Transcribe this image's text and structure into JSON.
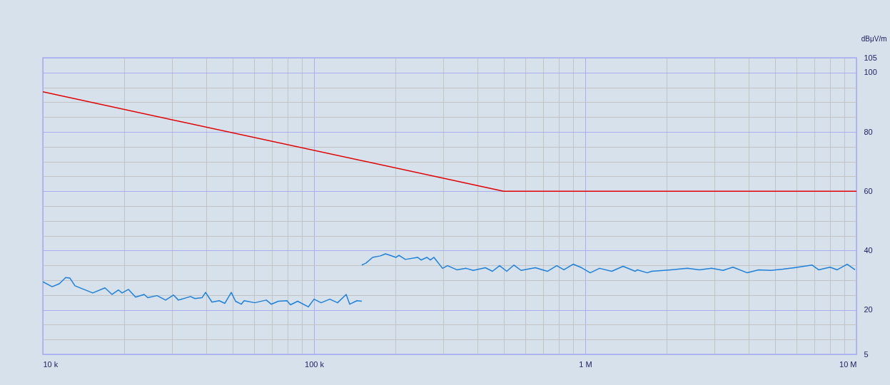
{
  "chart_data": {
    "type": "line",
    "ylabel": "dBμV/m",
    "log": "x",
    "grid": true,
    "legend": false,
    "xlim": [
      10000,
      10000000
    ],
    "xticks": [
      {
        "value": 10000,
        "label": "10 k"
      },
      {
        "value": 20000,
        "label": null
      },
      {
        "value": 30000,
        "label": null
      },
      {
        "value": 40000,
        "label": null
      },
      {
        "value": 50000,
        "label": null
      },
      {
        "value": 60000,
        "label": null
      },
      {
        "value": 70000,
        "label": null
      },
      {
        "value": 80000,
        "label": null
      },
      {
        "value": 90000,
        "label": null
      },
      {
        "value": 100000,
        "label": "100 k"
      },
      {
        "value": 200000,
        "label": null
      },
      {
        "value": 300000,
        "label": null
      },
      {
        "value": 400000,
        "label": null
      },
      {
        "value": 500000,
        "label": null
      },
      {
        "value": 600000,
        "label": null
      },
      {
        "value": 700000,
        "label": null
      },
      {
        "value": 800000,
        "label": null
      },
      {
        "value": 900000,
        "label": null
      },
      {
        "value": 1000000,
        "label": "1 M"
      },
      {
        "value": 2000000,
        "label": null
      },
      {
        "value": 3000000,
        "label": null
      },
      {
        "value": 4000000,
        "label": null
      },
      {
        "value": 5000000,
        "label": null
      },
      {
        "value": 6000000,
        "label": null
      },
      {
        "value": 7000000,
        "label": null
      },
      {
        "value": 8000000,
        "label": null
      },
      {
        "value": 9000000,
        "label": null
      },
      {
        "value": 10000000,
        "label": "10 M"
      }
    ],
    "ylim": [
      5,
      105
    ],
    "yticks": [
      5,
      {
        "value": 10,
        "label": null
      },
      {
        "value": 15,
        "label": null
      },
      20,
      {
        "value": 25,
        "label": null
      },
      {
        "value": 30,
        "label": null
      },
      {
        "value": 35,
        "label": null
      },
      40,
      {
        "value": 45,
        "label": null
      },
      {
        "value": 50,
        "label": null
      },
      {
        "value": 55,
        "label": null
      },
      60,
      {
        "value": 65,
        "label": null
      },
      {
        "value": 70,
        "label": null
      },
      {
        "value": 75,
        "label": null
      },
      80,
      {
        "value": 85,
        "label": null
      },
      {
        "value": 90,
        "label": null
      },
      {
        "value": 95,
        "label": null
      },
      100,
      105
    ],
    "series": [
      {
        "color": "#e00000",
        "x": [
          10000,
          500000,
          10000000
        ],
        "values": [
          93.5,
          60,
          60
        ]
      },
      {
        "color": "#1e80d8",
        "x": [
          10000,
          10820,
          11500,
          12140,
          12590,
          13140,
          15280,
          16940,
          18000,
          19010,
          19600,
          20700,
          21980,
          23640,
          24370,
          26370,
          28360,
          30310,
          31620,
          35050,
          36360,
          38630,
          39810,
          42050,
          44670,
          46900,
          49530,
          51350,
          53900,
          55230,
          60470,
          66650,
          69520,
          73850,
          79430,
          81880,
          87000,
          95260,
          100000,
          106200,
          114300,
          122100,
          131380,
          135400,
          143900,
          150000
        ],
        "values": [
          29.5,
          27.8,
          28.8,
          30.9,
          30.7,
          28.1,
          25.7,
          27.4,
          25.2,
          26.7,
          25.7,
          26.9,
          24.3,
          25.2,
          24.1,
          24.8,
          23.3,
          25.0,
          23.3,
          24.5,
          23.8,
          24.1,
          25.9,
          22.6,
          23.1,
          22.2,
          25.9,
          22.9,
          21.9,
          23.1,
          22.4,
          23.3,
          21.9,
          22.9,
          23.1,
          21.7,
          22.9,
          21.0,
          23.6,
          22.4,
          23.6,
          22.4,
          25.2,
          21.9,
          23.1,
          22.9
        ]
      },
      {
        "color": "#1e80d8",
        "x": [
          150000,
          155600,
          164400,
          175700,
          183400,
          200700,
          205700,
          217200,
          240800,
          248100,
          260500,
          268500,
          276800,
          297700,
          310600,
          336000,
          363600,
          386300,
          428200,
          454900,
          483300,
          513500,
          545800,
          579800,
          654500,
          725300,
          784900,
          834200,
          902100,
          970000,
          1043000,
          1129000,
          1252000,
          1379000,
          1528000,
          1556000,
          1694000,
          1757000,
          2070000,
          2379000,
          2637000,
          2923000,
          3221000,
          3505000,
          3957000,
          4360000,
          4833000,
          5356000,
          5903000,
          6867000,
          7253000,
          7991000,
          8491000,
          9243000,
          9879000
        ],
        "values": [
          35.1,
          35.8,
          37.7,
          38.2,
          38.9,
          37.7,
          38.4,
          37.0,
          37.7,
          36.8,
          37.7,
          36.8,
          37.7,
          34.0,
          34.9,
          33.5,
          34.0,
          33.3,
          34.2,
          33.0,
          34.9,
          33.0,
          35.1,
          33.3,
          34.2,
          33.0,
          34.9,
          33.5,
          35.4,
          34.2,
          32.5,
          34.0,
          33.0,
          34.7,
          33.0,
          33.5,
          32.5,
          33.0,
          33.5,
          34.0,
          33.5,
          34.0,
          33.3,
          34.4,
          32.5,
          33.5,
          33.3,
          33.7,
          34.2,
          35.1,
          33.5,
          34.4,
          33.5,
          35.4,
          33.5
        ]
      }
    ]
  }
}
